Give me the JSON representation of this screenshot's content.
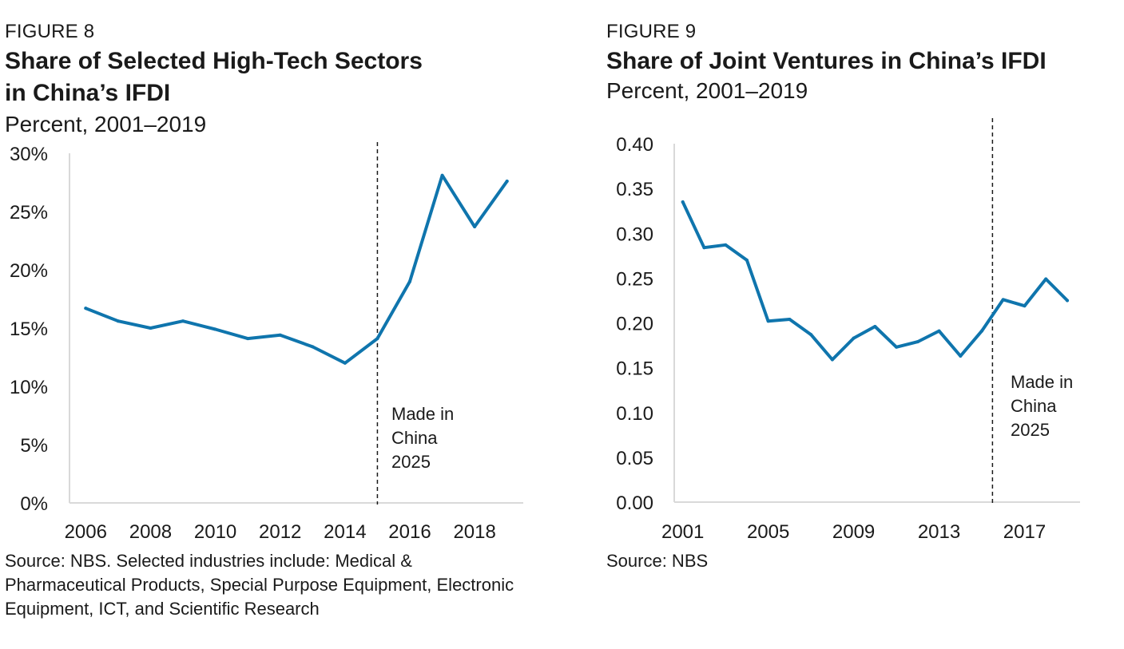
{
  "chart_data": [
    {
      "type": "line",
      "figure_label": "FIGURE 8",
      "title_lines": [
        "Share of Selected High-Tech Sectors",
        "in China’s IFDI"
      ],
      "subtitle": "Percent, 2001–2019",
      "x": [
        2006,
        2007,
        2008,
        2009,
        2010,
        2011,
        2012,
        2013,
        2014,
        2015,
        2016,
        2017,
        2018,
        2019
      ],
      "series": [
        {
          "name": "High-tech share",
          "values": [
            16.7,
            15.6,
            15.0,
            15.6,
            14.9,
            14.1,
            14.4,
            13.4,
            12.0,
            14.1,
            19.0,
            28.1,
            23.7,
            27.6
          ],
          "color": "#0f75ad"
        }
      ],
      "xlim": [
        2005.5,
        2019.5
      ],
      "ylim": [
        0,
        30
      ],
      "y_ticks": [
        0,
        5,
        10,
        15,
        20,
        25,
        30
      ],
      "y_tick_labels": [
        "0%",
        "5%",
        "10%",
        "15%",
        "20%",
        "25%",
        "30%"
      ],
      "x_ticks": [
        2006,
        2008,
        2010,
        2012,
        2014,
        2016,
        2018
      ],
      "x_tick_labels": [
        "2006",
        "2008",
        "2010",
        "2012",
        "2014",
        "2016",
        "2018"
      ],
      "marker_x": 2015,
      "annotation_lines": [
        "Made in",
        "China",
        "2025"
      ],
      "source_lines": [
        "Source: NBS. Selected industries include: Medical &",
        "Pharmaceutical Products, Special Purpose Equipment, Electronic",
        "Equipment, ICT, and Scientific Research"
      ]
    },
    {
      "type": "line",
      "figure_label": "FIGURE 9",
      "title_lines": [
        "Share of Joint Ventures in China’s IFDI"
      ],
      "subtitle": "Percent, 2001–2019",
      "x": [
        2001,
        2002,
        2003,
        2004,
        2005,
        2006,
        2007,
        2008,
        2009,
        2010,
        2011,
        2012,
        2013,
        2014,
        2015,
        2016,
        2017,
        2018,
        2019
      ],
      "series": [
        {
          "name": "Joint venture share",
          "values": [
            0.335,
            0.284,
            0.287,
            0.27,
            0.202,
            0.204,
            0.187,
            0.159,
            0.183,
            0.196,
            0.173,
            0.179,
            0.191,
            0.163,
            0.191,
            0.226,
            0.219,
            0.249,
            0.225
          ],
          "color": "#0f75ad"
        }
      ],
      "xlim": [
        2000.6,
        2019.6
      ],
      "ylim": [
        0,
        0.4
      ],
      "y_ticks": [
        0,
        0.05,
        0.1,
        0.15,
        0.2,
        0.25,
        0.3,
        0.35,
        0.4
      ],
      "y_tick_labels": [
        "0.00",
        "0.05",
        "0.10",
        "0.15",
        "0.20",
        "0.25",
        "0.30",
        "0.35",
        "0.40"
      ],
      "x_ticks": [
        2001,
        2005,
        2009,
        2013,
        2017
      ],
      "x_tick_labels": [
        "2001",
        "2005",
        "2009",
        "2013",
        "2017"
      ],
      "marker_x": 2015.5,
      "annotation_lines": [
        "Made in",
        "China",
        "2025"
      ],
      "source_lines": [
        "Source: NBS"
      ]
    }
  ]
}
